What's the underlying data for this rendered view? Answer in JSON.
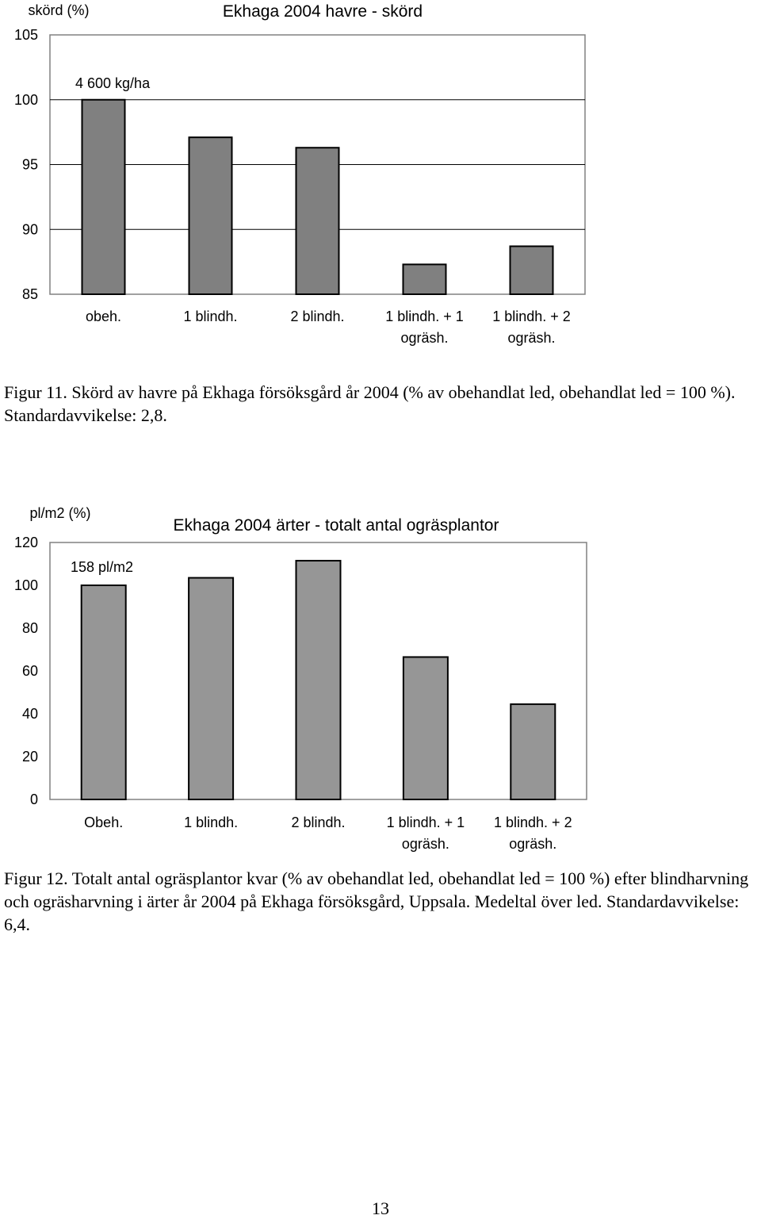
{
  "page_number": "13",
  "figure11": {
    "caption": "Figur 11. Skörd av havre på Ekhaga försöksgård år 2004 (% av obehandlat led, obehandlat led = 100 %). Standardavvikelse: 2,8."
  },
  "figure12": {
    "caption": "Figur 12. Totalt antal ogräsplantor kvar (% av obehandlat led, obehandlat led = 100 %) efter blindharvning och ogräsharvning i ärter år 2004 på Ekhaga försöksgård, Uppsala. Medeltal över led. Standardavvikelse: 6,4."
  },
  "chart_data": [
    {
      "type": "bar",
      "title": "Ekhaga 2004 havre - skörd",
      "ylabel": "skörd (%)",
      "xlabel": "",
      "categories": [
        [
          "obeh."
        ],
        [
          "1 blindh."
        ],
        [
          "2 blindh."
        ],
        [
          "1 blindh. + 1",
          "ogräsh."
        ],
        [
          "1 blindh. + 2",
          "ogräsh."
        ]
      ],
      "values": [
        100,
        97.1,
        96.3,
        87.3,
        88.7
      ],
      "ylim": [
        85,
        105
      ],
      "yticks": [
        85,
        90,
        95,
        100,
        105
      ],
      "annotation": "4 600 kg/ha",
      "bar_color": "#808080",
      "grid": "horizontal",
      "legend": "none"
    },
    {
      "type": "bar",
      "title": "Ekhaga 2004 ärter - totalt antal ogräsplantor",
      "ylabel": "pl/m2 (%)",
      "xlabel": "",
      "categories": [
        [
          "Obeh."
        ],
        [
          "1 blindh."
        ],
        [
          "2 blindh."
        ],
        [
          "1 blindh. + 1",
          "ogräsh."
        ],
        [
          "1 blindh. + 2",
          "ogräsh."
        ]
      ],
      "values": [
        100,
        103.5,
        111.5,
        66.5,
        44.5
      ],
      "ylim": [
        0,
        120
      ],
      "yticks": [
        0,
        20,
        40,
        60,
        80,
        100,
        120
      ],
      "annotation": "158 pl/m2",
      "bar_color": "#969696",
      "grid": "none",
      "legend": "none"
    }
  ]
}
